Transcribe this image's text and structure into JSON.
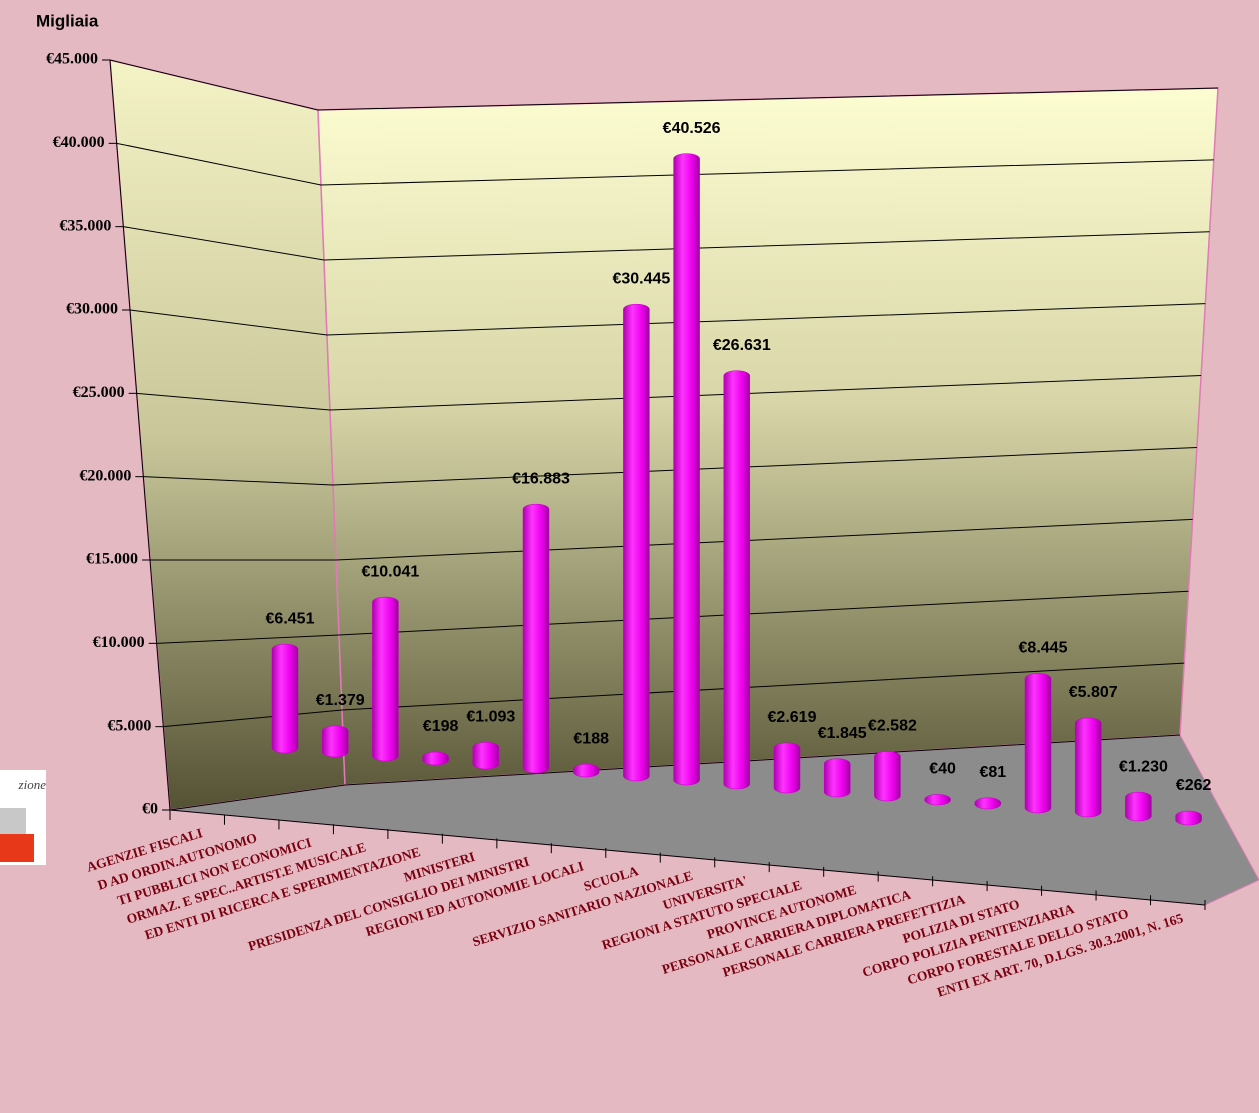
{
  "chart_data": {
    "type": "bar3d",
    "ylabel": "Migliaia",
    "logo": "zione",
    "categories": [
      "AGENZIE FISCALI",
      "D AD ORDIN.AUTONOMO",
      "TI PUBBLICI NON ECONOMICI",
      "ORMAZ. E SPEC..ARTIST.E MUSICALE",
      "ED ENTI DI RICERCA E SPERIMENTAZIONE",
      "MINISTERI",
      "PRESIDENZA DEL CONSIGLIO DEI MINISTRI",
      "REGIONI ED AUTONOMIE LOCALI",
      "SCUOLA",
      "SERVIZIO SANITARIO NAZIONALE",
      "UNIVERSITA'",
      "REGIONI A STATUTO SPECIALE",
      "PROVINCE AUTONOME",
      "PERSONALE CARRIERA DIPLOMATICA",
      "PERSONALE CARRIERA PREFETTIZIA",
      "POLIZIA DI STATO",
      "CORPO POLIZIA PENITENZIARIA",
      "CORPO FORESTALE DELLO STATO",
      "ENTI EX ART. 70, D.LGS. 30.3.2001, N. 165"
    ],
    "values": [
      6451,
      1379,
      10041,
      198,
      1093,
      16883,
      188,
      30445,
      40526,
      26631,
      2619,
      1845,
      2582,
      40,
      81,
      8445,
      5807,
      1230,
      262
    ],
    "value_labels": [
      "€6.451",
      "€1.379",
      "€10.041",
      "€198",
      "€1.093",
      "€16.883",
      "€188",
      "€30.445",
      "€40.526",
      "€26.631",
      "€2.619",
      "€1.845",
      "€2.582",
      "€40",
      "€81",
      "€8.445",
      "€5.807",
      "€1.230",
      "€262"
    ],
    "color": "#ff00ff",
    "ylim": [
      0,
      45000
    ],
    "yticks": [
      {
        "value": 0,
        "label": "€0"
      },
      {
        "value": 5000,
        "label": "€5.000"
      },
      {
        "value": 10000,
        "label": "€10.000"
      },
      {
        "value": 15000,
        "label": "€15.000"
      },
      {
        "value": 20000,
        "label": "€20.000"
      },
      {
        "value": 25000,
        "label": "€25.000"
      },
      {
        "value": 30000,
        "label": "€30.000"
      },
      {
        "value": 35000,
        "label": "€35.000"
      },
      {
        "value": 40000,
        "label": "€40.000"
      },
      {
        "value": 45000,
        "label": "€45.000"
      }
    ],
    "grid": true
  }
}
